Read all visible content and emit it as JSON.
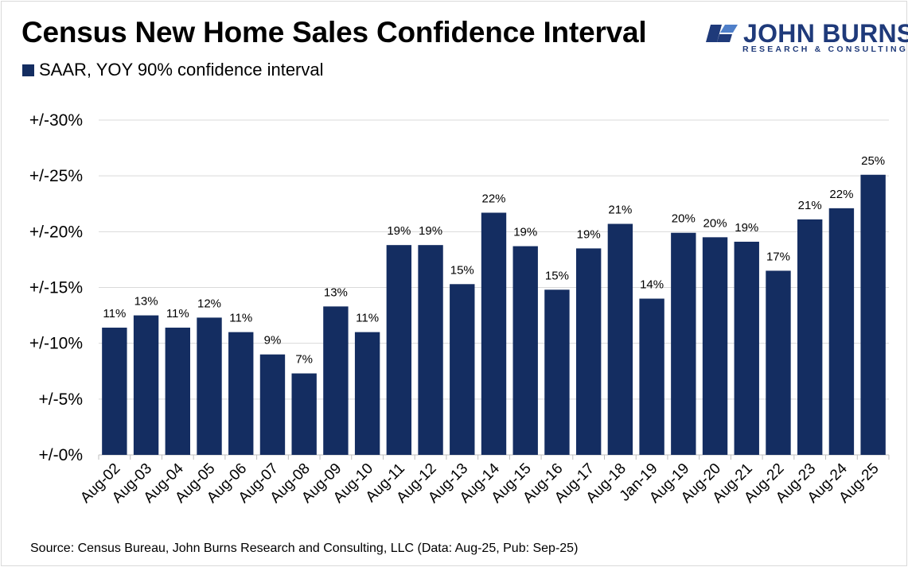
{
  "chart_data": {
    "type": "bar",
    "title": "Census New Home Sales Confidence Interval",
    "legend": [
      "SAAR, YOY 90% confidence interval"
    ],
    "categories": [
      "Aug-02",
      "Aug-03",
      "Aug-04",
      "Aug-05",
      "Aug-06",
      "Aug-07",
      "Aug-08",
      "Aug-09",
      "Aug-10",
      "Aug-11",
      "Aug-12",
      "Aug-13",
      "Aug-14",
      "Aug-15",
      "Aug-16",
      "Aug-17",
      "Aug-18",
      "Jan-19",
      "Aug-19",
      "Aug-20",
      "Aug-21",
      "Aug-22",
      "Aug-23",
      "Aug-24",
      "Aug-25"
    ],
    "values": [
      11.4,
      12.5,
      11.4,
      12.3,
      11.0,
      9.0,
      7.3,
      13.3,
      11.0,
      18.8,
      18.8,
      15.3,
      21.7,
      18.7,
      14.8,
      18.5,
      20.7,
      14.0,
      19.9,
      19.5,
      19.1,
      16.5,
      21.1,
      22.1,
      25.1
    ],
    "labels": [
      "11%",
      "13%",
      "11%",
      "12%",
      "11%",
      "9%",
      "7%",
      "13%",
      "11%",
      "19%",
      "19%",
      "15%",
      "22%",
      "19%",
      "15%",
      "19%",
      "21%",
      "14%",
      "20%",
      "20%",
      "19%",
      "17%",
      "21%",
      "22%",
      "25%"
    ],
    "ylim": [
      0,
      30
    ],
    "yticks": [
      "+/-0%",
      "+/-5%",
      "+/-10%",
      "+/-15%",
      "+/-20%",
      "+/-25%",
      "+/-30%"
    ],
    "xlabel": "",
    "ylabel": "",
    "grid": true,
    "bar_color": "#142d61",
    "legend_position": "top-left"
  },
  "brand": {
    "name": "JOHN BURNS",
    "tagline": "RESEARCH & CONSULTING",
    "color": "#1f3a7a"
  },
  "source": "Source: Census Bureau, John Burns Research and Consulting, LLC (Data: Aug-25, Pub: Sep-25)"
}
